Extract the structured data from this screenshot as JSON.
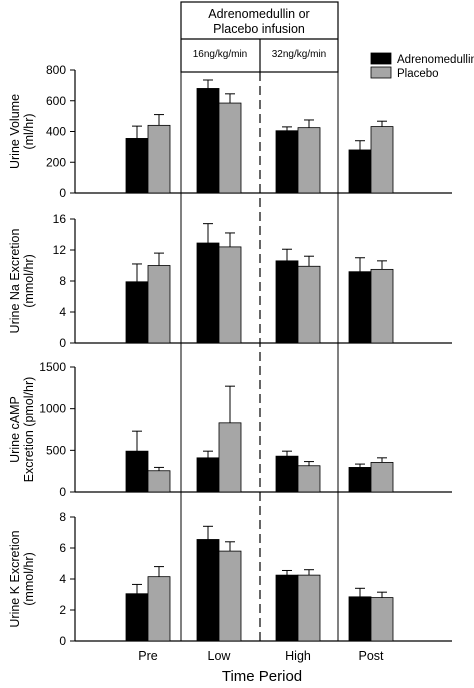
{
  "header": {
    "infusion_line1": "Adrenomedullin or",
    "infusion_line2": "Placebo infusion",
    "low_dose": "16ng/kg/min",
    "high_dose": "32ng/kg/min"
  },
  "legend": {
    "position": "top-right",
    "items": [
      {
        "label": "Adrenomedullin",
        "color": "#000000"
      },
      {
        "label": "Placebo",
        "color": "#a6a6a6"
      }
    ]
  },
  "colors": {
    "adrenomedullin": "#000000",
    "placebo": "#a6a6a6"
  },
  "xlabel": "Time Period",
  "chart_data": [
    {
      "type": "bar",
      "ylabel_lines": [
        "Urine Volume",
        "(ml/hr)"
      ],
      "categories": [
        "Pre",
        "Low",
        "High",
        "Post"
      ],
      "ylim": [
        0,
        800
      ],
      "yticks": [
        0,
        200,
        400,
        600,
        800
      ],
      "series": [
        {
          "name": "Adrenomedullin",
          "values": [
            355,
            680,
            405,
            280
          ],
          "errors": [
            80,
            55,
            25,
            60
          ]
        },
        {
          "name": "Placebo",
          "values": [
            440,
            585,
            425,
            432
          ],
          "errors": [
            70,
            60,
            50,
            35
          ]
        }
      ]
    },
    {
      "type": "bar",
      "ylabel_lines": [
        "Urine Na Excretion",
        "(mmol/hr)"
      ],
      "categories": [
        "Pre",
        "Low",
        "High",
        "Post"
      ],
      "ylim": [
        0,
        16
      ],
      "yticks": [
        0,
        4,
        8,
        12,
        16
      ],
      "series": [
        {
          "name": "Adrenomedullin",
          "values": [
            7.9,
            12.9,
            10.6,
            9.2
          ],
          "errors": [
            2.3,
            2.5,
            1.5,
            1.8
          ]
        },
        {
          "name": "Placebo",
          "values": [
            10.0,
            12.4,
            9.9,
            9.5
          ],
          "errors": [
            1.6,
            1.8,
            1.3,
            1.1
          ]
        }
      ]
    },
    {
      "type": "bar",
      "ylabel_lines": [
        "Urine cAMP",
        "Excretion (pmol/hr)"
      ],
      "categories": [
        "Pre",
        "Low",
        "High",
        "Post"
      ],
      "ylim": [
        0,
        1500
      ],
      "yticks": [
        0,
        500,
        1000,
        1500
      ],
      "series": [
        {
          "name": "Adrenomedullin",
          "values": [
            490,
            410,
            430,
            295
          ],
          "errors": [
            240,
            80,
            60,
            40
          ]
        },
        {
          "name": "Placebo",
          "values": [
            255,
            830,
            315,
            355
          ],
          "errors": [
            40,
            440,
            50,
            55
          ]
        }
      ]
    },
    {
      "type": "bar",
      "ylabel_lines": [
        "Urine K Excretion",
        "(mmol/hr)"
      ],
      "categories": [
        "Pre",
        "Low",
        "High",
        "Post"
      ],
      "ylim": [
        0,
        8
      ],
      "yticks": [
        0,
        2,
        4,
        6,
        8
      ],
      "series": [
        {
          "name": "Adrenomedullin",
          "values": [
            3.05,
            6.55,
            4.25,
            2.85
          ],
          "errors": [
            0.6,
            0.85,
            0.3,
            0.55
          ]
        },
        {
          "name": "Placebo",
          "values": [
            4.15,
            5.8,
            4.25,
            2.8
          ],
          "errors": [
            0.65,
            0.6,
            0.35,
            0.35
          ]
        }
      ]
    }
  ]
}
